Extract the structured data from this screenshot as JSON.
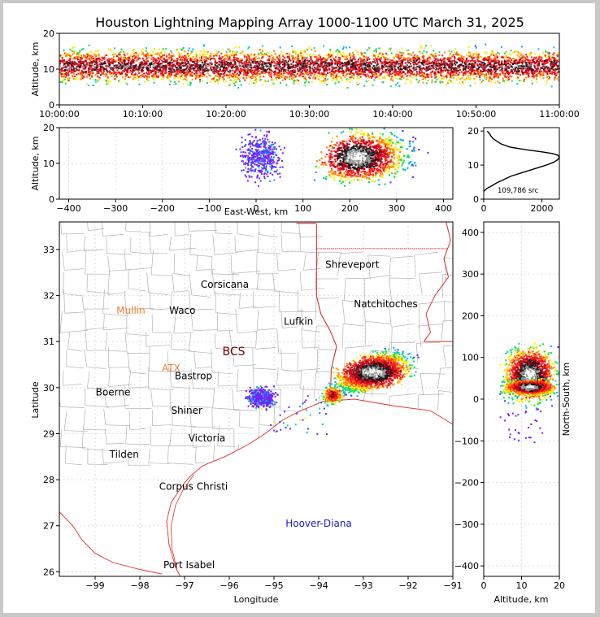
{
  "title": "Houston Lightning Mapping Array 1000-1100 UTC March 31, 2025",
  "colors": {
    "ramp": [
      "#7b1fff",
      "#3b3bff",
      "#00b0ff",
      "#00e070",
      "#f5f000",
      "#ff8c00",
      "#ff2020",
      "#c0001a",
      "#1a1a1a",
      "#9a9a9a",
      "#ffffff"
    ],
    "state_border": "#d81e1e",
    "county_lines": "#b4b4b4",
    "coast": "#e03030",
    "lma_orange": "#f08030",
    "lma_blue": "#1a1ad0",
    "lma_green": "#40e040",
    "lma_darkred": "#7a0000"
  },
  "chart_data": [
    {
      "id": "altitude_time",
      "type": "heatmap",
      "title": "",
      "ylabel": "Altitude, km",
      "xlim": [
        "10:00:00",
        "11:00:00"
      ],
      "ylim": [
        0,
        20
      ],
      "xticks": [
        "10:00:00",
        "10:10:00",
        "10:20:00",
        "10:30:00",
        "10:40:00",
        "10:50:00",
        "11:00:00"
      ],
      "yticks": [
        "0",
        "10",
        "20"
      ],
      "bands": [
        {
          "altitude_km": 11,
          "density": "highest"
        },
        {
          "altitude_km": [
            6,
            16
          ],
          "density": "medium"
        },
        {
          "altitude_km": [
            3,
            20
          ],
          "density": "low"
        }
      ]
    },
    {
      "id": "altitude_eastwest",
      "type": "heatmap",
      "xlabel": "East-West, km",
      "ylabel": "Altitude, km",
      "xlim": [
        -420,
        420
      ],
      "ylim": [
        0,
        20
      ],
      "xticks": [
        "−400",
        "−300",
        "−200",
        "−100",
        "0",
        "100",
        "200",
        "300",
        "400"
      ],
      "yticks": [
        "0",
        "10",
        "20"
      ],
      "clusters": [
        {
          "center_x_km": 215,
          "center_alt_km": 12,
          "extent_x_km": [
            140,
            380
          ],
          "extent_alt_km": [
            1,
            20
          ],
          "peak": "white"
        },
        {
          "center_x_km": 10,
          "center_alt_km": 12,
          "extent_x_km": [
            -60,
            80
          ],
          "extent_alt_km": [
            3,
            20
          ],
          "peak": "purple"
        }
      ]
    },
    {
      "id": "altitude_histogram",
      "type": "line",
      "xlim": [
        0,
        2600
      ],
      "ylim": [
        0,
        21
      ],
      "xticks": [
        "0",
        "2000"
      ],
      "yticks": [
        "0",
        "10",
        "20"
      ],
      "annotation": "109,786 src",
      "x": [
        0,
        100,
        250,
        450,
        700,
        950,
        1250,
        1550,
        1850,
        2150,
        2400,
        2550,
        2600,
        2550,
        2350,
        2000,
        1450,
        900,
        600,
        450,
        320,
        250,
        200,
        150,
        120
      ],
      "y": [
        2.3,
        3.1,
        3.8,
        4.8,
        5.8,
        6.8,
        7.6,
        8.4,
        9.2,
        10.0,
        10.8,
        11.6,
        12.3,
        12.9,
        13.4,
        13.9,
        14.5,
        15.3,
        16.2,
        17.0,
        17.8,
        18.5,
        19.2,
        19.7,
        20.0
      ]
    },
    {
      "id": "plan_view",
      "type": "heatmap",
      "xlabel": "Longitude",
      "ylabel": "Latitude",
      "xlim": [
        -99.8,
        -91
      ],
      "ylim": [
        25.9,
        33.6
      ],
      "xticks": [
        "−99",
        "−98",
        "−97",
        "−96",
        "−95",
        "−94",
        "−93",
        "−92",
        "−91"
      ],
      "yticks": [
        "26",
        "27",
        "28",
        "29",
        "30",
        "31",
        "32",
        "33"
      ],
      "place_labels": [
        {
          "name": "Shreveport",
          "lon": -93.25,
          "lat": 32.6,
          "color": "#000000"
        },
        {
          "name": "Corsicana",
          "lon": -96.1,
          "lat": 32.17,
          "color": "#000000"
        },
        {
          "name": "Natchitoches",
          "lon": -92.5,
          "lat": 31.75,
          "color": "#000000"
        },
        {
          "name": "Mullin",
          "lon": -98.2,
          "lat": 31.6,
          "color": "#f08030"
        },
        {
          "name": "Waco",
          "lon": -97.05,
          "lat": 31.6,
          "color": "#000000"
        },
        {
          "name": "Lufkin",
          "lon": -94.45,
          "lat": 31.37,
          "color": "#000000"
        },
        {
          "name": "BCS",
          "lon": -95.9,
          "lat": 30.7,
          "color": "#7a0000"
        },
        {
          "name": "ATX",
          "lon": -97.3,
          "lat": 30.35,
          "color": "#f08030"
        },
        {
          "name": "Bastrop",
          "lon": -96.8,
          "lat": 30.18,
          "color": "#000000"
        },
        {
          "name": "Boerne",
          "lon": -98.6,
          "lat": 29.83,
          "color": "#000000"
        },
        {
          "name": "Shiner",
          "lon": -96.95,
          "lat": 29.43,
          "color": "#000000"
        },
        {
          "name": "Victoria",
          "lon": -96.5,
          "lat": 28.83,
          "color": "#000000"
        },
        {
          "name": "Tilden",
          "lon": -98.35,
          "lat": 28.48,
          "color": "#000000"
        },
        {
          "name": "Corpus Christi",
          "lon": -96.8,
          "lat": 27.78,
          "color": "#000000"
        },
        {
          "name": "Hoover-Diana",
          "lon": -94.0,
          "lat": 26.98,
          "color": "#1a1ad0"
        },
        {
          "name": "Port Isabel",
          "lon": -96.9,
          "lat": 26.08,
          "color": "#000000"
        }
      ],
      "clusters": [
        {
          "center_lon": -92.8,
          "center_lat": 30.35,
          "extent_lon": [
            -93.9,
            -91.8
          ],
          "extent_lat": [
            29.9,
            30.9
          ],
          "peak": "white"
        },
        {
          "center_lon": -93.7,
          "center_lat": 29.85,
          "extent_lon": [
            -94.0,
            -93.4
          ],
          "extent_lat": [
            29.5,
            30.0
          ],
          "peak": "black"
        },
        {
          "center_lon": -95.3,
          "center_lat": 29.8,
          "extent_lon": [
            -95.7,
            -94.8
          ],
          "extent_lat": [
            29.5,
            30.1
          ],
          "peak": "purple"
        }
      ]
    },
    {
      "id": "ns_altitude",
      "type": "heatmap",
      "xlabel": "Altitude, km",
      "ylabel": "North-South, km",
      "xlim": [
        0,
        20
      ],
      "ylim": [
        -425,
        425
      ],
      "xticks": [
        "0",
        "10",
        "20"
      ],
      "yticks": [
        "−400",
        "−300",
        "−200",
        "−100",
        "0",
        "100",
        "200",
        "300",
        "400"
      ],
      "clusters": [
        {
          "center_alt_km": 12,
          "center_ns_km": 60,
          "extent_alt_km": [
            1,
            20
          ],
          "extent_ns_km": [
            -30,
            140
          ],
          "peak": "white"
        },
        {
          "center_alt_km": 12,
          "center_ns_km": 30,
          "extent_alt_km": [
            2,
            18
          ],
          "extent_ns_km": [
            0,
            50
          ],
          "peak": "white"
        }
      ]
    }
  ]
}
